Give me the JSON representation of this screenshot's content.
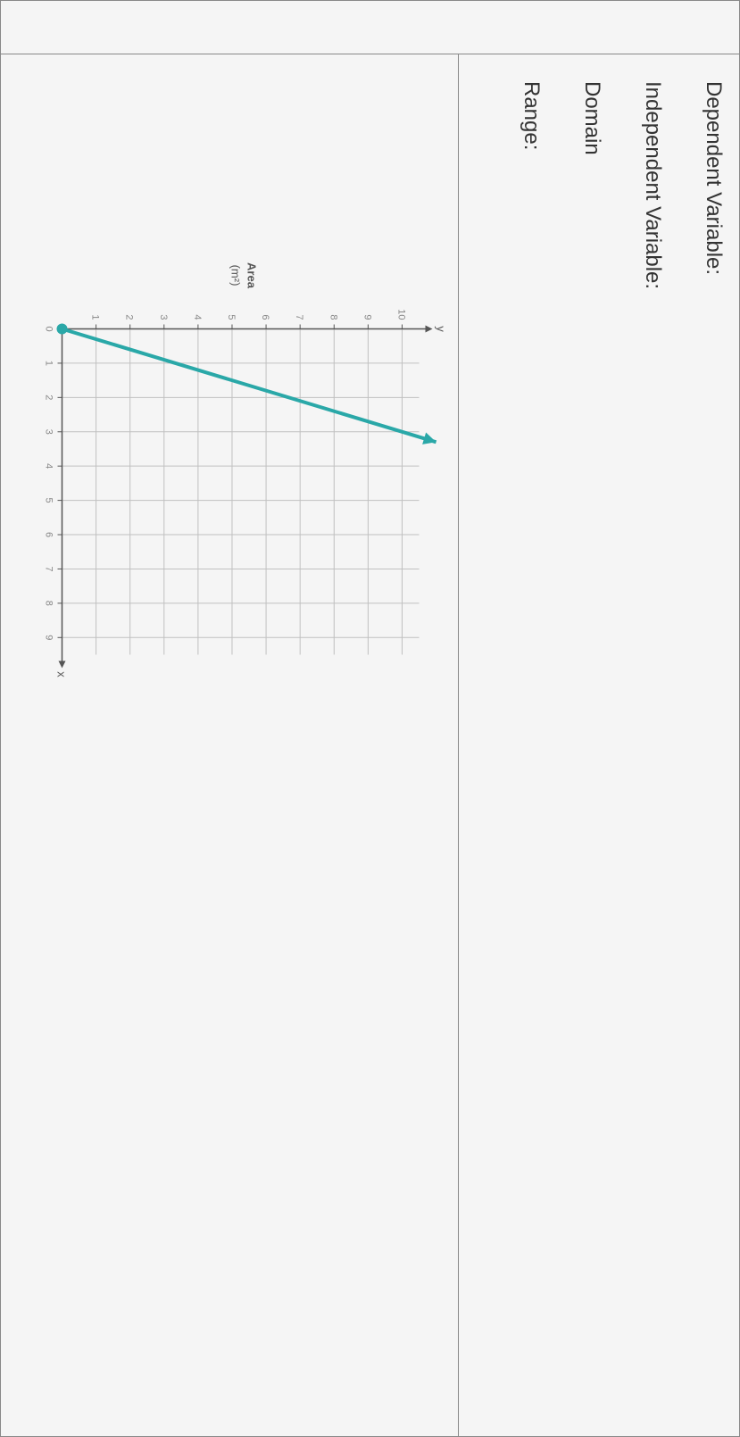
{
  "chart": {
    "type": "line",
    "y_axis_label": "Area",
    "y_axis_unit": "(m²)",
    "x_axis_label": "x",
    "y_axis_top_label": "y",
    "x_ticks": [
      "0",
      "1",
      "2",
      "3",
      "4",
      "5",
      "6",
      "7",
      "8",
      "9"
    ],
    "y_ticks": [
      "1",
      "2",
      "3",
      "4",
      "5",
      "6",
      "7",
      "8",
      "9",
      "10"
    ],
    "xlim": [
      0,
      9.5
    ],
    "ylim": [
      0,
      10.5
    ],
    "line_start": [
      0,
      0
    ],
    "line_end": [
      3.3,
      11
    ],
    "line_color": "#2aa8a8",
    "line_width": 4,
    "start_point_filled": true,
    "end_arrow": true,
    "point_color": "#2aa8a8",
    "point_radius": 6,
    "background_color": "#f5f5f5",
    "grid_color": "#c0c0c0",
    "axis_color": "#555555",
    "tick_label_color": "#888888",
    "axis_label_color": "#555555",
    "tick_fontsize": 11,
    "label_fontsize": 13
  },
  "form": {
    "dependent_label": "Dependent Variable:",
    "independent_label": "Independent Variable:",
    "domain_label": "Domain",
    "range_label": "Range:"
  }
}
